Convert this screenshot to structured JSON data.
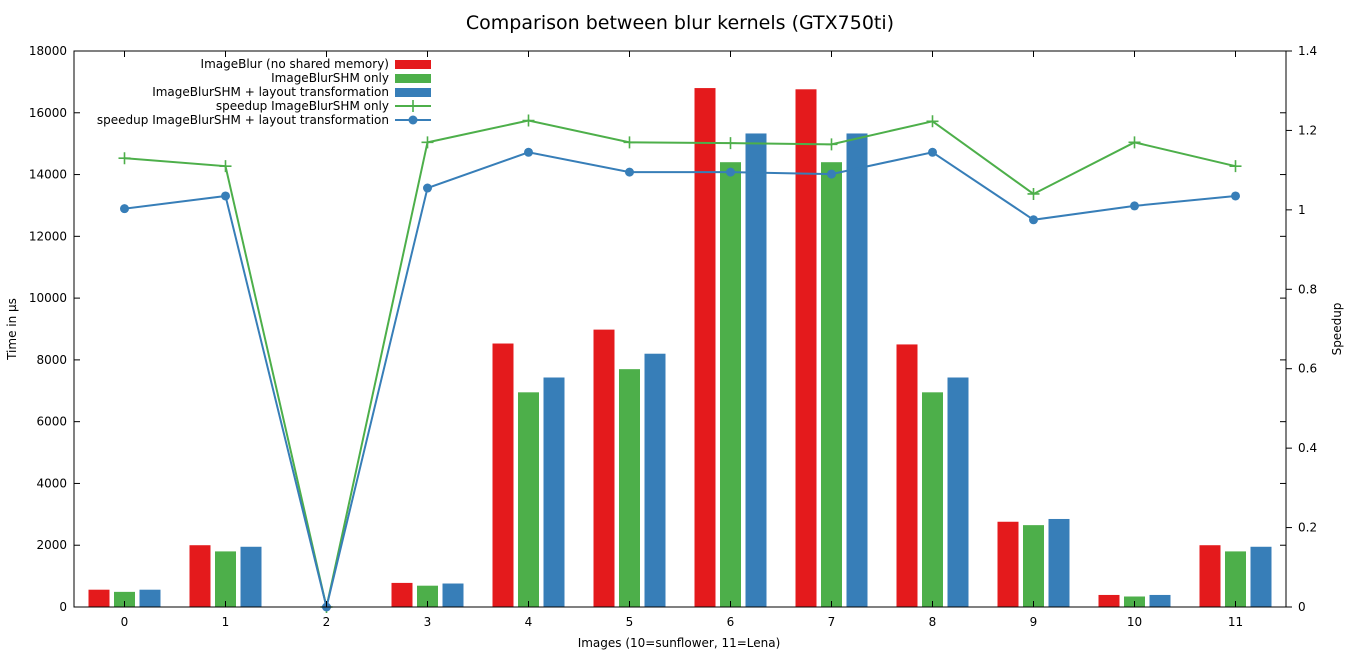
{
  "chart_data": {
    "type": "bar",
    "title": "Comparison between blur kernels (GTX750ti)",
    "xlabel": "Images (10=sunflower, 11=Lena)",
    "ylabel": "Time in µs",
    "y2label": "Speedup",
    "categories": [
      "0",
      "1",
      "2",
      "3",
      "4",
      "5",
      "6",
      "7",
      "8",
      "9",
      "10",
      "11"
    ],
    "ylim": [
      0,
      18000
    ],
    "yticks": [
      "0",
      "2000",
      "4000",
      "6000",
      "8000",
      "10000",
      "12000",
      "14000",
      "16000",
      "18000"
    ],
    "y2lim": [
      0,
      1.4
    ],
    "y2ticks": [
      "0",
      "0.2",
      "0.4",
      "0.6",
      "0.8",
      "1",
      "1.2",
      "1.4"
    ],
    "legend_position": "top-left",
    "grid": false,
    "series": [
      {
        "name": "ImageBlur (no shared memory)",
        "kind": "bar",
        "axis": "left",
        "color": "#e41a1c",
        "values": [
          560,
          2000,
          0,
          780,
          8530,
          8980,
          16800,
          16760,
          8500,
          2760,
          390,
          2000
        ]
      },
      {
        "name": "ImageBlurSHM only",
        "kind": "bar",
        "axis": "left",
        "color": "#4daf4a",
        "values": [
          490,
          1800,
          0,
          690,
          6950,
          7700,
          14400,
          14400,
          6950,
          2650,
          340,
          1800
        ]
      },
      {
        "name": "ImageBlurSHM + layout transformation",
        "kind": "bar",
        "axis": "left",
        "color": "#377eb8",
        "values": [
          560,
          1950,
          0,
          760,
          7430,
          8200,
          15330,
          15330,
          7430,
          2850,
          390,
          1950
        ]
      },
      {
        "name": "speedup ImageBlurSHM only",
        "kind": "line",
        "axis": "right",
        "color": "#4daf4a",
        "marker": "plus",
        "values": [
          1.13,
          1.11,
          0.0,
          1.17,
          1.225,
          1.17,
          1.168,
          1.165,
          1.223,
          1.04,
          1.17,
          1.11
        ]
      },
      {
        "name": "speedup ImageBlurSHM + layout transformation",
        "kind": "line",
        "axis": "right",
        "color": "#377eb8",
        "marker": "circle",
        "values": [
          1.003,
          1.035,
          0.0,
          1.055,
          1.145,
          1.095,
          1.095,
          1.09,
          1.145,
          0.975,
          1.01,
          1.035
        ]
      }
    ]
  }
}
